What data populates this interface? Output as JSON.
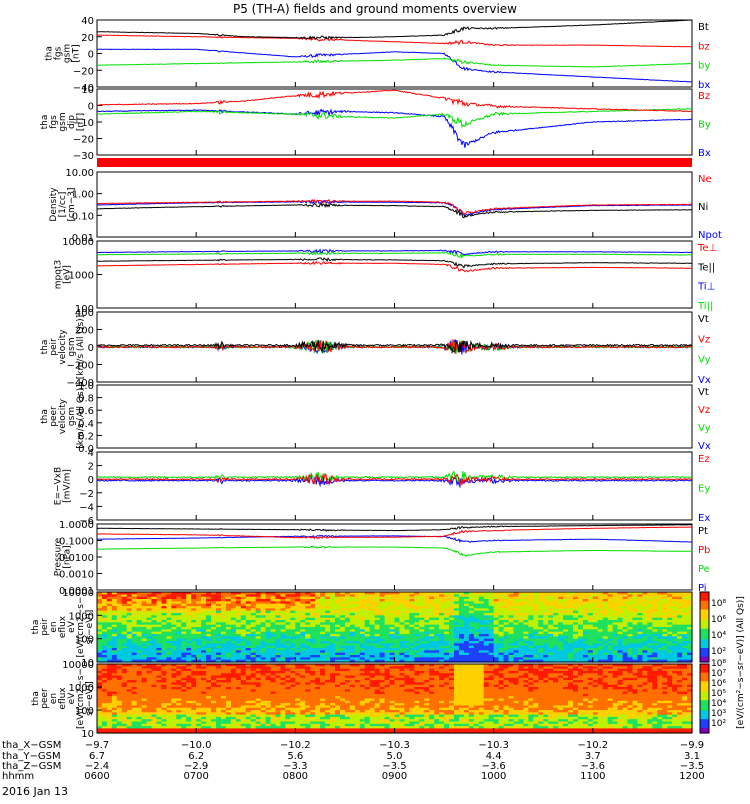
{
  "title": "P5 (TH-A) fields and ground moments overview",
  "date_label": "2016 Jan 13",
  "colors": {
    "black": "#000000",
    "red": "#ff0000",
    "green": "#00e000",
    "blue": "#0000ff"
  },
  "chart_data": [
    {
      "type": "line",
      "panel": "fgs_gsm",
      "ylabel": [
        "tha",
        "fgs",
        "gsm",
        "[nT]"
      ],
      "ylim": [
        -40,
        40
      ],
      "ticks": [
        "40",
        "20",
        "0",
        "−20",
        "−40"
      ],
      "series": [
        {
          "name": "Bt",
          "color": "black"
        },
        {
          "name": "bz",
          "color": "red"
        },
        {
          "name": "by",
          "color": "green"
        },
        {
          "name": "bx",
          "color": "blue"
        }
      ]
    },
    {
      "type": "line",
      "panel": "fgs_gsm_dip",
      "ylabel": [
        "tha",
        "fgs",
        "gsm",
        "dip",
        "[nT]"
      ],
      "ylim": [
        -35,
        15
      ],
      "ticks": [
        "10",
        "0",
        "−10",
        "−20",
        "−30"
      ],
      "series": [
        {
          "name": "Bz",
          "color": "red"
        },
        {
          "name": "By",
          "color": "green"
        },
        {
          "name": "Bx",
          "color": "blue"
        }
      ]
    },
    {
      "type": "line",
      "panel": "density",
      "ylabel": [
        "Density",
        "[1/cc]",
        "[cm−3]"
      ],
      "ylim": [
        0.01,
        10
      ],
      "log": true,
      "ticks": [
        "10.00",
        "1.00",
        "0.10",
        "0.01"
      ],
      "series": [
        {
          "name": "Ne",
          "color": "red"
        },
        {
          "name": "Ni",
          "color": "black"
        },
        {
          "name": "Npot",
          "color": "blue"
        }
      ]
    },
    {
      "type": "line",
      "panel": "temperature",
      "ylabel": [
        "mpqt3",
        "[eV]"
      ],
      "ylim": [
        30,
        15000
      ],
      "log": true,
      "ticks": [
        "10000",
        "1000",
        "100"
      ],
      "series": [
        {
          "name": "Te⊥",
          "color": "red"
        },
        {
          "name": "Te||",
          "color": "black"
        },
        {
          "name": "Ti⊥",
          "color": "blue"
        },
        {
          "name": "Ti||",
          "color": "green"
        }
      ]
    },
    {
      "type": "line",
      "panel": "peir_velocity",
      "ylabel": [
        "tha",
        "peir",
        "velocity",
        "gsm",
        "[km/s (All Qs)]"
      ],
      "ylim": [
        -400,
        400
      ],
      "ticks": [
        "400",
        "200",
        "0",
        "−200",
        "−400"
      ],
      "series": [
        {
          "name": "Vt",
          "color": "black"
        },
        {
          "name": "Vz",
          "color": "red"
        },
        {
          "name": "Vy",
          "color": "green"
        },
        {
          "name": "Vx",
          "color": "blue"
        }
      ]
    },
    {
      "type": "line",
      "panel": "peer_velocity",
      "ylabel": [
        "tha",
        "peer",
        "velocity",
        "gsm",
        "[km/s (All Qs)]"
      ],
      "ylim": [
        -1,
        1
      ],
      "ticks": [
        "1.0",
        "0.8",
        "0.6",
        "0.4",
        "0.2",
        "0.0"
      ],
      "series": [
        {
          "name": "Vt",
          "color": "black"
        },
        {
          "name": "Vz",
          "color": "red"
        },
        {
          "name": "Vy",
          "color": "green"
        },
        {
          "name": "Vx",
          "color": "blue"
        }
      ]
    },
    {
      "type": "line",
      "panel": "efield",
      "ylabel": [
        "E=−VxB",
        "[mV/m]"
      ],
      "ylim": [
        -6,
        4
      ],
      "ticks": [
        "4",
        "2",
        "0",
        "−2",
        "−4",
        "−6"
      ],
      "series": [
        {
          "name": "Ez",
          "color": "red"
        },
        {
          "name": "Ey",
          "color": "green"
        },
        {
          "name": "Ex",
          "color": "blue"
        }
      ]
    },
    {
      "type": "line",
      "panel": "pressure",
      "ylabel": [
        "Pressure",
        "[nPa]"
      ],
      "ylim": [
        0.0001,
        1
      ],
      "log": true,
      "ticks": [
        "1.0000",
        "0.1000",
        "0.0100",
        "0.0010",
        "0.0001"
      ],
      "series": [
        {
          "name": "Pt",
          "color": "black"
        },
        {
          "name": "Pb",
          "color": "red"
        },
        {
          "name": "Pe",
          "color": "green"
        },
        {
          "name": "Pi",
          "color": "blue"
        }
      ]
    },
    {
      "type": "heatmap",
      "panel": "peir_en_eflux",
      "ylabel": [
        "tha",
        "peir",
        "en",
        "eflux",
        "eV",
        "[eV/(cm2−s−",
        "sr−eV)]"
      ],
      "ylim": [
        5,
        25000
      ],
      "log": true,
      "ticks": [
        "10000",
        "1000",
        "100",
        "10"
      ]
    },
    {
      "type": "heatmap",
      "panel": "peer_en_eflux",
      "ylabel": [
        "tha",
        "peer",
        "en",
        "eflux",
        "eV",
        "[eV/(cm2−s−",
        "sr−eV)]"
      ],
      "ylim": [
        5,
        25000
      ],
      "log": true,
      "ticks": [
        "10000",
        "1000",
        "100",
        "10"
      ]
    }
  ],
  "colorbar": {
    "label": "[eV/(cm²−s−sr−eV)]  (All Qs)]",
    "top_ticks": [
      "10⁸",
      "10⁶",
      "10⁴",
      "10²"
    ],
    "bottom_ticks": [
      "10⁸",
      "10⁷",
      "10⁶",
      "10⁵",
      "10⁴",
      "10³",
      "10²"
    ]
  },
  "x_axis": {
    "row_labels": [
      "tha_X−GSM",
      "tha_Y−GSM",
      "tha_Z−GSM",
      "hhmm"
    ],
    "columns": [
      {
        "x": "−9.7",
        "y": "6.7",
        "z": "−2.4",
        "t": "0600"
      },
      {
        "x": "−10.0",
        "y": "6.2",
        "z": "−2.9",
        "t": "0700"
      },
      {
        "x": "−10.2",
        "y": "5.6",
        "z": "−3.3",
        "t": "0800"
      },
      {
        "x": "−10.3",
        "y": "5.0",
        "z": "−3.5",
        "t": "0900"
      },
      {
        "x": "−10.3",
        "y": "4.4",
        "z": "−3.6",
        "t": "1000"
      },
      {
        "x": "−10.2",
        "y": "3.7",
        "z": "−3.6",
        "t": "1100"
      },
      {
        "x": "−9.9",
        "y": "3.1",
        "z": "−3.5",
        "t": "1200"
      }
    ]
  }
}
